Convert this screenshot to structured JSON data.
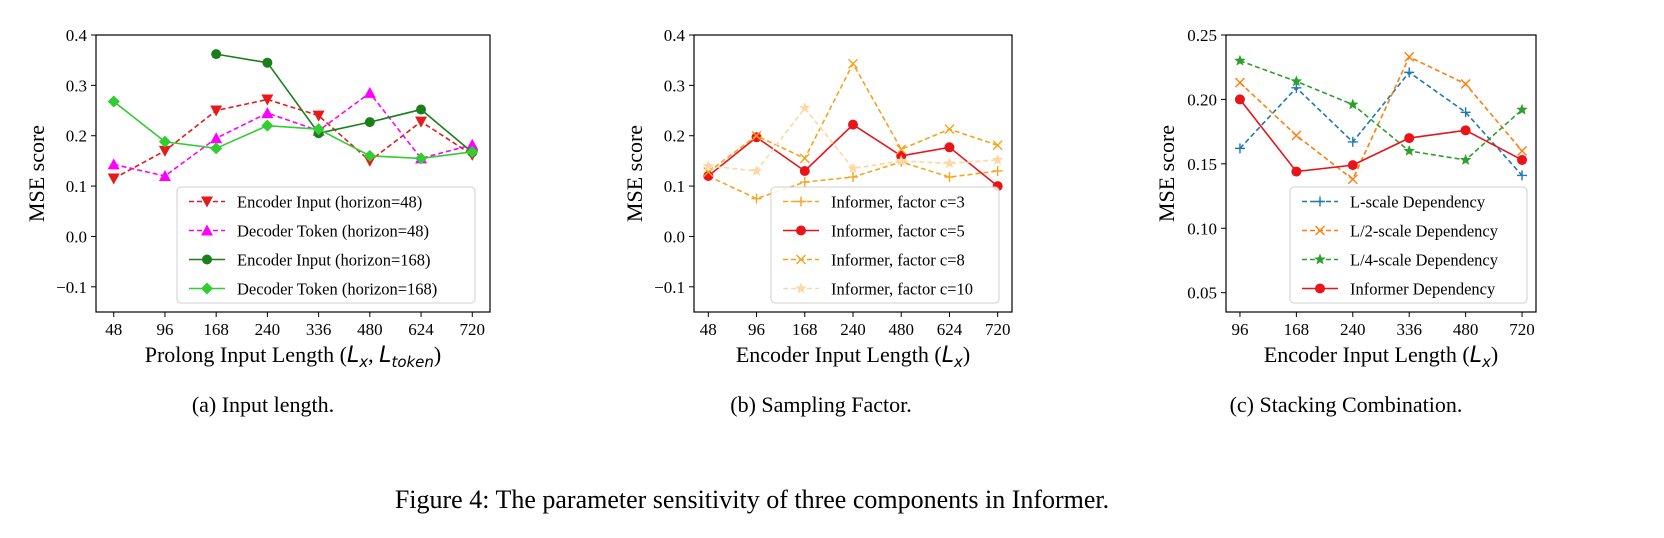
{
  "chart_data": [
    {
      "type": "line",
      "caption": "(a) Input length.",
      "xlabel_main": "Prolong Input Length (",
      "xlabel_sym1": "L",
      "xlabel_sub1": "x",
      "xlabel_sep": ", ",
      "xlabel_sym2": "L",
      "xlabel_sub2": "token",
      "xlabel_close": ")",
      "ylabel": "MSE score",
      "categories": [
        "48",
        "96",
        "168",
        "240",
        "336",
        "480",
        "624",
        "720"
      ],
      "ylim": [
        -0.15,
        0.4
      ],
      "yticks": [
        -0.1,
        0.0,
        0.1,
        0.2,
        0.3,
        0.4
      ],
      "ytick_labels": [
        "−0.1",
        "0.0",
        "0.1",
        "0.2",
        "0.3",
        "0.4"
      ],
      "legend_position": "lower-right",
      "series": [
        {
          "name": "Encoder Input (horizon=48)",
          "color": "#e41a1c",
          "dash": true,
          "marker": "tri-down",
          "values": [
            0.115,
            0.17,
            0.25,
            0.272,
            0.24,
            0.15,
            0.228,
            0.162
          ]
        },
        {
          "name": "Decoder Token (horizon=48)",
          "color": "#ff00ff",
          "dash": true,
          "marker": "tri-up",
          "values": [
            0.143,
            0.12,
            0.195,
            0.245,
            0.21,
            0.285,
            0.155,
            0.182
          ]
        },
        {
          "name": "Encoder Input (horizon=168)",
          "color": "#1a7f1a",
          "dash": false,
          "marker": "circle",
          "values": [
            null,
            null,
            0.362,
            0.345,
            0.205,
            0.227,
            0.252,
            0.167
          ]
        },
        {
          "name": "Decoder Token (horizon=168)",
          "color": "#33cc33",
          "dash": false,
          "marker": "diamond",
          "values": [
            0.268,
            0.188,
            0.175,
            0.22,
            0.213,
            0.16,
            0.155,
            0.168
          ]
        }
      ]
    },
    {
      "type": "line",
      "caption": "(b) Sampling Factor.",
      "xlabel_main": "Encoder Input Length (",
      "xlabel_sym1": "L",
      "xlabel_sub1": "x",
      "xlabel_close": ")",
      "ylabel": "MSE score",
      "categories": [
        "48",
        "96",
        "168",
        "240",
        "480",
        "624",
        "720"
      ],
      "ylim": [
        -0.15,
        0.4
      ],
      "yticks": [
        -0.1,
        0.0,
        0.1,
        0.2,
        0.3,
        0.4
      ],
      "ytick_labels": [
        "−0.1",
        "0.0",
        "0.1",
        "0.2",
        "0.3",
        "0.4"
      ],
      "legend_position": "lower-right",
      "series": [
        {
          "name": "Informer, factor c=3",
          "color": "#f5a623",
          "dash": true,
          "marker": "plus",
          "values": [
            0.12,
            0.075,
            0.108,
            0.118,
            0.148,
            0.118,
            0.13
          ]
        },
        {
          "name": "Informer, factor c=5",
          "color": "#e8141a",
          "dash": false,
          "marker": "circle",
          "values": [
            0.12,
            0.197,
            0.13,
            0.222,
            0.16,
            0.177,
            0.1
          ]
        },
        {
          "name": "Informer, factor c=8",
          "color": "#f7a21c",
          "dash": true,
          "marker": "x",
          "values": [
            0.128,
            0.2,
            0.155,
            0.343,
            0.173,
            0.213,
            0.181
          ]
        },
        {
          "name": "Informer, factor c=10",
          "color": "#fbd9a6",
          "dash": true,
          "marker": "star",
          "values": [
            0.14,
            0.13,
            0.255,
            0.135,
            0.15,
            0.145,
            0.152
          ]
        }
      ]
    },
    {
      "type": "line",
      "caption": "(c) Stacking Combination.",
      "xlabel_main": "Encoder Input Length (",
      "xlabel_sym1": "L",
      "xlabel_sub1": "x",
      "xlabel_close": ")",
      "ylabel": "MSE score",
      "categories": [
        "96",
        "168",
        "240",
        "336",
        "480",
        "720"
      ],
      "ylim": [
        0.035,
        0.25
      ],
      "yticks": [
        0.05,
        0.1,
        0.15,
        0.2,
        0.25
      ],
      "ytick_labels": [
        "0.05",
        "0.10",
        "0.15",
        "0.20",
        "0.25"
      ],
      "legend_position": "lower-right",
      "series": [
        {
          "name": "L-scale Dependency",
          "color": "#1f77b4",
          "dash": true,
          "marker": "plus",
          "values": [
            0.162,
            0.209,
            0.167,
            0.221,
            0.19,
            0.141
          ]
        },
        {
          "name": "L/2-scale Dependency",
          "color": "#ff7f0e",
          "dash": true,
          "marker": "x",
          "values": [
            0.213,
            0.172,
            0.138,
            0.233,
            0.212,
            0.16
          ]
        },
        {
          "name": "L/4-scale Dependency",
          "color": "#2ca02c",
          "dash": true,
          "marker": "star",
          "values": [
            0.23,
            0.214,
            0.196,
            0.16,
            0.153,
            0.192
          ]
        },
        {
          "name": "Informer Dependency",
          "color": "#e8141a",
          "dash": false,
          "marker": "circle",
          "values": [
            0.2,
            0.144,
            0.149,
            0.17,
            0.176,
            0.153
          ]
        }
      ]
    }
  ],
  "figure_caption": "Figure 4: The parameter sensitivity of three components in Informer."
}
